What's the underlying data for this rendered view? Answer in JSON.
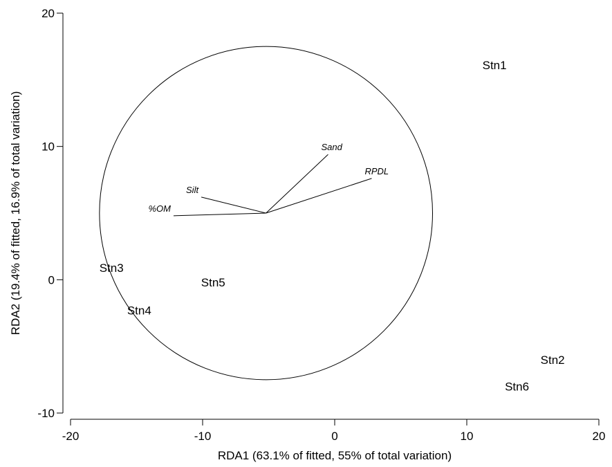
{
  "chart_data": {
    "type": "scatter",
    "xlabel": "RDA1 (63.1% of fitted, 55% of total variation)",
    "ylabel": "RDA2 (19.4% of fitted, 16.9% of total variation)",
    "xlim": [
      -20,
      20
    ],
    "ylim": [
      -10,
      20
    ],
    "xticks": [
      -20,
      -10,
      0,
      10,
      20
    ],
    "yticks": [
      -10,
      0,
      10,
      20
    ],
    "grid": false,
    "sites": [
      {
        "label": "Stn1",
        "x": 12.1,
        "y": 16.1
      },
      {
        "label": "Stn2",
        "x": 16.5,
        "y": -6.0
      },
      {
        "label": "Stn3",
        "x": -16.9,
        "y": 0.9
      },
      {
        "label": "Stn4",
        "x": -14.8,
        "y": -2.3
      },
      {
        "label": "Stn5",
        "x": -9.2,
        "y": -0.2
      },
      {
        "label": "Stn6",
        "x": 13.8,
        "y": -8.0
      }
    ],
    "vector_origin": {
      "x": -5.2,
      "y": 5.0
    },
    "vectors": [
      {
        "label": "Sand",
        "x": -0.5,
        "y": 9.4
      },
      {
        "label": "RPDL",
        "x": 2.8,
        "y": 7.6
      },
      {
        "label": "Silt",
        "x": -10.1,
        "y": 6.2
      },
      {
        "label": "%OM",
        "x": -12.2,
        "y": 4.8
      }
    ],
    "circle": {
      "center": {
        "x": -5.2,
        "y": 5.0
      },
      "radius_y": 12.5
    }
  }
}
